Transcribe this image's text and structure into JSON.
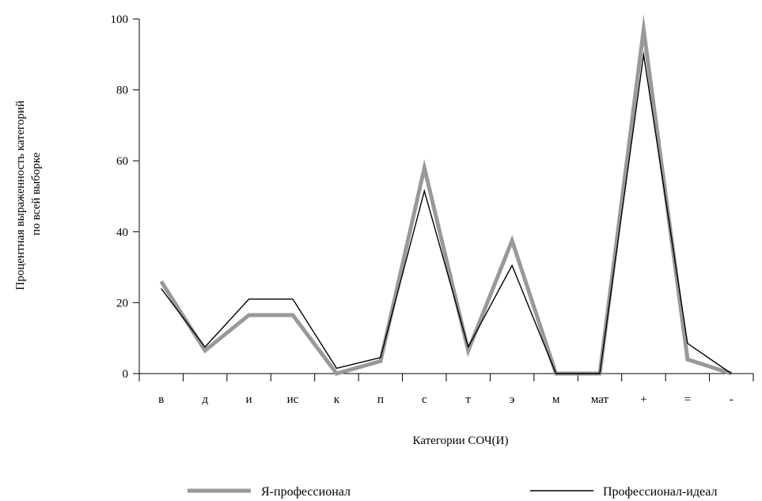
{
  "chart_data": {
    "type": "line",
    "title": "",
    "xlabel": "Категории СОЧ(И)",
    "ylabel_lines": [
      "Процентная выраженность категорий",
      "по всей выборке"
    ],
    "ylim": [
      0,
      100
    ],
    "yticks": [
      0,
      20,
      40,
      60,
      80,
      100
    ],
    "categories": [
      "в",
      "д",
      "и",
      "ис",
      "к",
      "п",
      "с",
      "т",
      "э",
      "м",
      "мат",
      "+",
      "=",
      "-"
    ],
    "legend_position": "bottom",
    "grid": false,
    "series": [
      {
        "name": "Я-профессионал",
        "color": "#999999",
        "values": [
          26,
          6.5,
          16.5,
          16.5,
          0,
          3.5,
          58,
          6.5,
          37.5,
          0,
          0,
          97,
          4,
          0
        ]
      },
      {
        "name": "Профессионал-идеал",
        "color": "#000000",
        "values": [
          24,
          7.5,
          21,
          21,
          1.5,
          4.5,
          51.5,
          7.5,
          30.5,
          0,
          0,
          90,
          8.5,
          0
        ]
      }
    ]
  }
}
